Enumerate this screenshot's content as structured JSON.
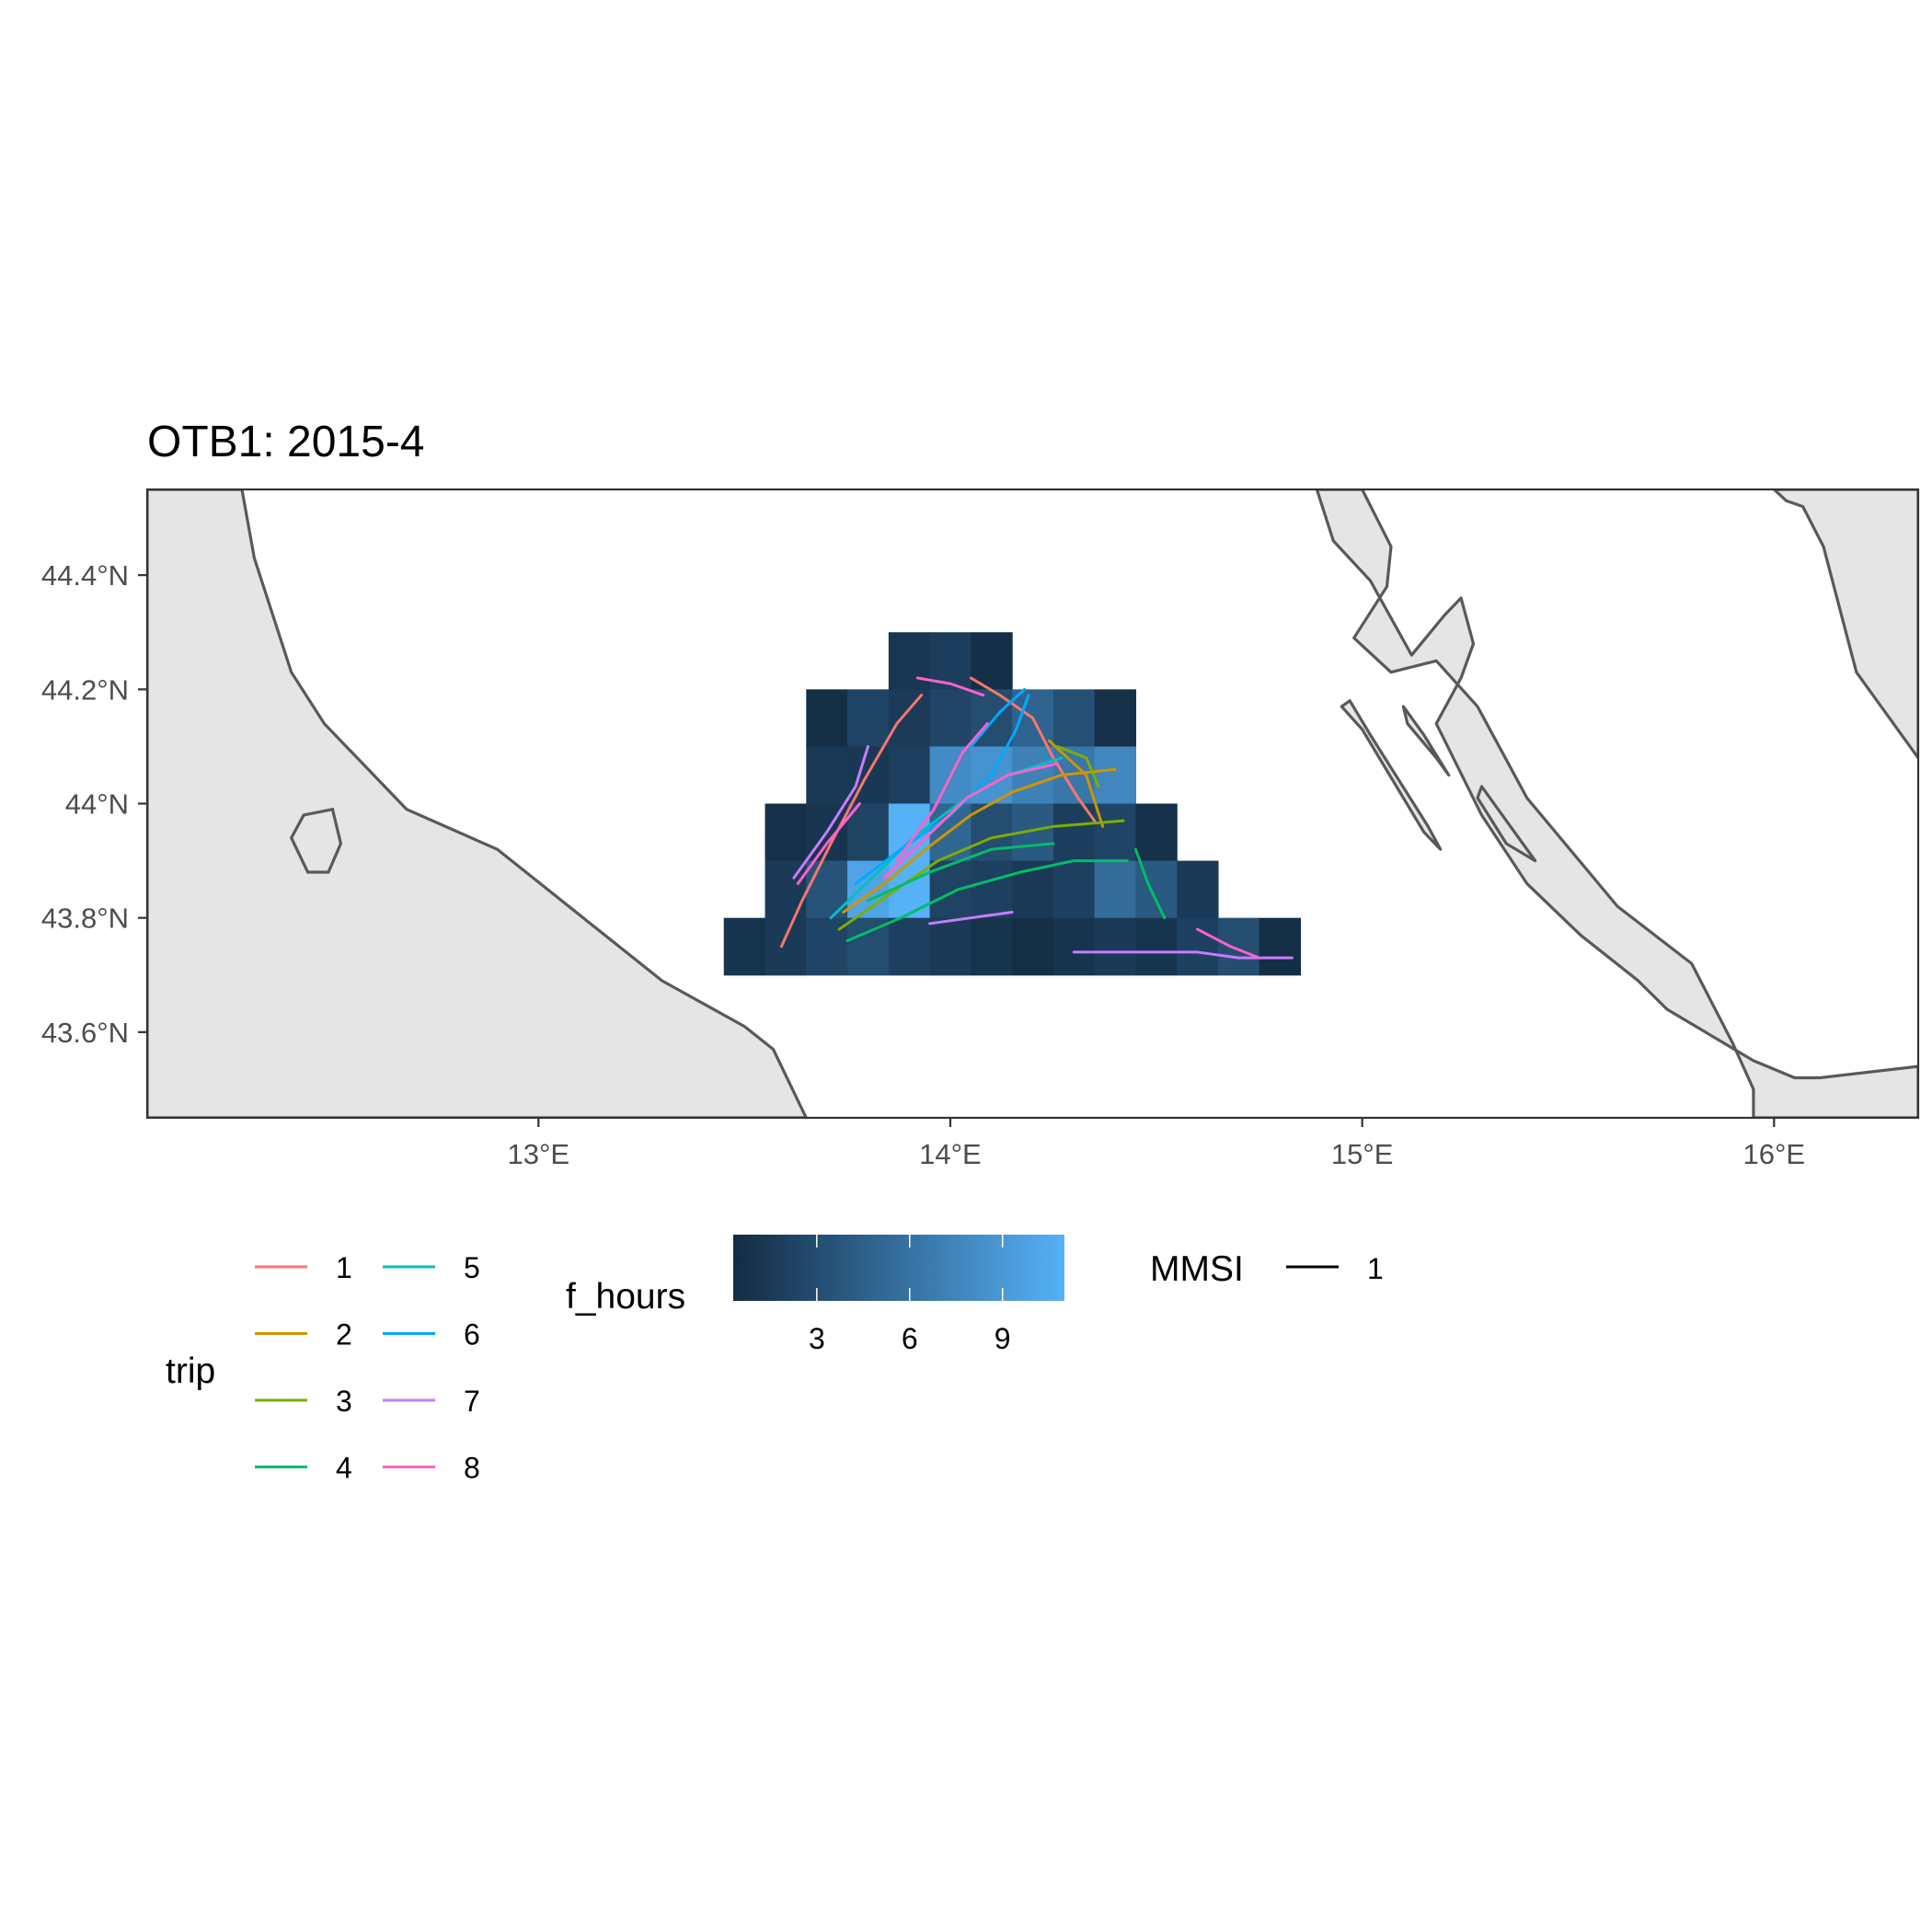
{
  "chart_data": {
    "type": "heatmap",
    "title": "OTB1: 2015-4",
    "xlim": [
      12.05,
      16.35
    ],
    "ylim": [
      43.45,
      44.55
    ],
    "x_ticks": [
      {
        "value": 13,
        "label": "13°E"
      },
      {
        "value": 14,
        "label": "14°E"
      },
      {
        "value": 15,
        "label": "15°E"
      },
      {
        "value": 16,
        "label": "16°E"
      }
    ],
    "y_ticks": [
      {
        "value": 43.6,
        "label": "43.6°N"
      },
      {
        "value": 43.8,
        "label": "43.8°N"
      },
      {
        "value": 44.0,
        "label": "44°N"
      },
      {
        "value": 44.2,
        "label": "44.2°N"
      },
      {
        "value": 44.4,
        "label": "44.4°N"
      }
    ],
    "grid": false,
    "cell_size": 0.1,
    "cells": [
      {
        "x": 13.9,
        "y": 44.25,
        "v": 1.2
      },
      {
        "x": 14.0,
        "y": 44.25,
        "v": 1.8
      },
      {
        "x": 14.1,
        "y": 44.25,
        "v": 0.6
      },
      {
        "x": 13.7,
        "y": 44.15,
        "v": 0.5
      },
      {
        "x": 13.8,
        "y": 44.15,
        "v": 2.2
      },
      {
        "x": 13.9,
        "y": 44.15,
        "v": 1.6
      },
      {
        "x": 14.0,
        "y": 44.15,
        "v": 2.4
      },
      {
        "x": 14.1,
        "y": 44.15,
        "v": 3.0
      },
      {
        "x": 14.2,
        "y": 44.15,
        "v": 4.8
      },
      {
        "x": 14.3,
        "y": 44.15,
        "v": 3.2
      },
      {
        "x": 14.4,
        "y": 44.15,
        "v": 0.7
      },
      {
        "x": 13.7,
        "y": 44.05,
        "v": 1.4
      },
      {
        "x": 13.8,
        "y": 44.05,
        "v": 1.3
      },
      {
        "x": 13.9,
        "y": 44.05,
        "v": 1.9
      },
      {
        "x": 14.0,
        "y": 44.05,
        "v": 8.0
      },
      {
        "x": 14.1,
        "y": 44.05,
        "v": 8.6
      },
      {
        "x": 14.2,
        "y": 44.05,
        "v": 7.2
      },
      {
        "x": 14.3,
        "y": 44.05,
        "v": 6.4
      },
      {
        "x": 14.4,
        "y": 44.05,
        "v": 7.6
      },
      {
        "x": 13.6,
        "y": 43.95,
        "v": 0.7
      },
      {
        "x": 13.7,
        "y": 43.95,
        "v": 1.1
      },
      {
        "x": 13.8,
        "y": 43.95,
        "v": 2.2
      },
      {
        "x": 13.9,
        "y": 43.95,
        "v": 11.0
      },
      {
        "x": 14.0,
        "y": 43.95,
        "v": 5.0
      },
      {
        "x": 14.1,
        "y": 43.95,
        "v": 3.0
      },
      {
        "x": 14.2,
        "y": 43.95,
        "v": 4.0
      },
      {
        "x": 14.3,
        "y": 43.95,
        "v": 1.8
      },
      {
        "x": 14.4,
        "y": 43.95,
        "v": 2.3
      },
      {
        "x": 14.5,
        "y": 43.95,
        "v": 0.7
      },
      {
        "x": 13.6,
        "y": 43.85,
        "v": 1.5
      },
      {
        "x": 13.7,
        "y": 43.85,
        "v": 3.5
      },
      {
        "x": 13.8,
        "y": 43.85,
        "v": 10.0
      },
      {
        "x": 13.9,
        "y": 43.85,
        "v": 11.0
      },
      {
        "x": 14.0,
        "y": 43.85,
        "v": 2.2
      },
      {
        "x": 14.1,
        "y": 43.85,
        "v": 2.0
      },
      {
        "x": 14.2,
        "y": 43.85,
        "v": 1.4
      },
      {
        "x": 14.3,
        "y": 43.85,
        "v": 2.0
      },
      {
        "x": 14.4,
        "y": 43.85,
        "v": 5.5
      },
      {
        "x": 14.5,
        "y": 43.85,
        "v": 4.0
      },
      {
        "x": 14.6,
        "y": 43.85,
        "v": 1.5
      },
      {
        "x": 13.5,
        "y": 43.75,
        "v": 1.0
      },
      {
        "x": 13.6,
        "y": 43.75,
        "v": 1.5
      },
      {
        "x": 13.7,
        "y": 43.75,
        "v": 2.3
      },
      {
        "x": 13.8,
        "y": 43.75,
        "v": 3.0
      },
      {
        "x": 13.9,
        "y": 43.75,
        "v": 2.0
      },
      {
        "x": 14.0,
        "y": 43.75,
        "v": 1.5
      },
      {
        "x": 14.1,
        "y": 43.75,
        "v": 1.0
      },
      {
        "x": 14.2,
        "y": 43.75,
        "v": 0.5
      },
      {
        "x": 14.3,
        "y": 43.75,
        "v": 1.0
      },
      {
        "x": 14.4,
        "y": 43.75,
        "v": 1.5
      },
      {
        "x": 14.5,
        "y": 43.75,
        "v": 1.0
      },
      {
        "x": 14.6,
        "y": 43.75,
        "v": 2.0
      },
      {
        "x": 14.7,
        "y": 43.75,
        "v": 3.0
      },
      {
        "x": 14.8,
        "y": 43.75,
        "v": 0.5
      }
    ],
    "fill_scale": {
      "title": "f_hours",
      "min": 0.3,
      "max": 11.0,
      "low": "#132b43",
      "high": "#56b1f7",
      "ticks": [
        {
          "value": 3,
          "label": "3"
        },
        {
          "value": 6,
          "label": "6"
        },
        {
          "value": 9,
          "label": "9"
        }
      ]
    },
    "tracks": [
      {
        "trip": "1",
        "color": "#f8766d",
        "pts": [
          [
            13.59,
            43.75
          ],
          [
            13.64,
            43.83
          ],
          [
            13.71,
            43.93
          ],
          [
            13.79,
            44.04
          ],
          [
            13.87,
            44.14
          ],
          [
            13.93,
            44.19
          ]
        ]
      },
      {
        "trip": "1",
        "color": "#f8766d",
        "pts": [
          [
            14.05,
            44.22
          ],
          [
            14.12,
            44.19
          ],
          [
            14.2,
            44.15
          ],
          [
            14.25,
            44.08
          ],
          [
            14.31,
            44.01
          ],
          [
            14.35,
            43.97
          ]
        ]
      },
      {
        "trip": "2",
        "color": "#cd9600",
        "pts": [
          [
            13.74,
            43.81
          ],
          [
            13.84,
            43.86
          ],
          [
            13.94,
            43.92
          ],
          [
            14.05,
            43.98
          ],
          [
            14.15,
            44.02
          ],
          [
            14.27,
            44.05
          ],
          [
            14.4,
            44.06
          ]
        ]
      },
      {
        "trip": "2",
        "color": "#cd9600",
        "pts": [
          [
            14.24,
            44.11
          ],
          [
            14.33,
            44.05
          ],
          [
            14.37,
            43.96
          ]
        ]
      },
      {
        "trip": "3",
        "color": "#7cae00",
        "pts": [
          [
            13.73,
            43.78
          ],
          [
            13.85,
            43.84
          ],
          [
            13.97,
            43.9
          ],
          [
            14.1,
            43.94
          ],
          [
            14.25,
            43.96
          ],
          [
            14.42,
            43.97
          ]
        ]
      },
      {
        "trip": "3",
        "color": "#7cae00",
        "pts": [
          [
            14.26,
            44.1
          ],
          [
            14.33,
            44.08
          ],
          [
            14.36,
            44.03
          ]
        ]
      },
      {
        "trip": "4",
        "color": "#00be67",
        "pts": [
          [
            13.75,
            43.76
          ],
          [
            13.88,
            43.8
          ],
          [
            14.02,
            43.85
          ],
          [
            14.17,
            43.88
          ],
          [
            14.3,
            43.9
          ],
          [
            14.43,
            43.9
          ]
        ]
      },
      {
        "trip": "4",
        "color": "#00be67",
        "pts": [
          [
            13.8,
            43.83
          ],
          [
            13.95,
            43.88
          ],
          [
            14.1,
            43.92
          ],
          [
            14.25,
            43.93
          ]
        ]
      },
      {
        "trip": "4",
        "color": "#00be67",
        "pts": [
          [
            14.45,
            43.92
          ],
          [
            14.48,
            43.86
          ],
          [
            14.52,
            43.8
          ]
        ]
      },
      {
        "trip": "5",
        "color": "#00bfc4",
        "pts": [
          [
            13.71,
            43.8
          ],
          [
            13.81,
            43.87
          ],
          [
            13.91,
            43.94
          ],
          [
            14.02,
            44.0
          ],
          [
            14.14,
            44.05
          ],
          [
            14.27,
            44.08
          ]
        ]
      },
      {
        "trip": "6",
        "color": "#00a9ff",
        "pts": [
          [
            13.77,
            43.86
          ],
          [
            13.88,
            43.92
          ],
          [
            14.0,
            43.98
          ],
          [
            14.1,
            44.05
          ],
          [
            14.16,
            44.13
          ],
          [
            14.19,
            44.19
          ]
        ]
      },
      {
        "trip": "6",
        "color": "#00a9ff",
        "pts": [
          [
            14.05,
            44.1
          ],
          [
            14.12,
            44.16
          ],
          [
            14.18,
            44.2
          ]
        ]
      },
      {
        "trip": "7",
        "color": "#c77cff",
        "pts": [
          [
            13.62,
            43.87
          ],
          [
            13.7,
            43.95
          ],
          [
            13.77,
            44.03
          ],
          [
            13.8,
            44.1
          ]
        ]
      },
      {
        "trip": "7",
        "color": "#c77cff",
        "pts": [
          [
            14.3,
            43.74
          ],
          [
            14.45,
            43.74
          ],
          [
            14.6,
            43.74
          ],
          [
            14.7,
            43.73
          ],
          [
            14.83,
            43.73
          ]
        ]
      },
      {
        "trip": "7",
        "color": "#c77cff",
        "pts": [
          [
            13.95,
            43.79
          ],
          [
            14.05,
            43.8
          ],
          [
            14.15,
            43.81
          ]
        ]
      },
      {
        "trip": "8",
        "color": "#ff61cc",
        "pts": [
          [
            13.63,
            43.86
          ],
          [
            13.7,
            43.93
          ],
          [
            13.78,
            44.0
          ]
        ]
      },
      {
        "trip": "8",
        "color": "#ff61cc",
        "pts": [
          [
            13.84,
            43.87
          ],
          [
            13.94,
            43.94
          ],
          [
            14.04,
            44.01
          ],
          [
            14.14,
            44.05
          ],
          [
            14.26,
            44.07
          ]
        ]
      },
      {
        "trip": "8",
        "color": "#ff61cc",
        "pts": [
          [
            13.92,
            44.22
          ],
          [
            14.0,
            44.21
          ],
          [
            14.08,
            44.19
          ]
        ]
      },
      {
        "trip": "8",
        "color": "#ff61cc",
        "pts": [
          [
            14.6,
            43.78
          ],
          [
            14.68,
            43.75
          ],
          [
            14.75,
            43.73
          ]
        ]
      },
      {
        "trip": "8",
        "color": "#ff61cc",
        "pts": [
          [
            13.87,
            43.9
          ],
          [
            13.96,
            43.99
          ],
          [
            14.03,
            44.09
          ],
          [
            14.09,
            44.14
          ]
        ]
      }
    ]
  },
  "map": {
    "land_fill": "#e5e5e5",
    "coast_color": "#595959",
    "land": [
      [
        [
          12.05,
          44.55
        ],
        [
          12.28,
          44.55
        ],
        [
          12.31,
          44.43
        ],
        [
          12.4,
          44.23
        ],
        [
          12.48,
          44.14
        ],
        [
          12.68,
          43.99
        ],
        [
          12.9,
          43.92
        ],
        [
          13.3,
          43.69
        ],
        [
          13.5,
          43.61
        ],
        [
          13.57,
          43.57
        ],
        [
          13.65,
          43.45
        ],
        [
          12.05,
          43.45
        ]
      ],
      [
        [
          16.35,
          44.55
        ],
        [
          16.35,
          44.08
        ],
        [
          16.2,
          44.23
        ],
        [
          16.12,
          44.45
        ],
        [
          16.07,
          44.52
        ],
        [
          16.03,
          44.53
        ],
        [
          16.0,
          44.55
        ]
      ],
      [
        [
          14.89,
          44.55
        ],
        [
          14.93,
          44.46
        ],
        [
          15.02,
          44.39
        ],
        [
          15.12,
          44.26
        ],
        [
          15.2,
          44.33
        ],
        [
          15.24,
          44.36
        ],
        [
          15.27,
          44.28
        ],
        [
          15.24,
          44.22
        ],
        [
          15.18,
          44.14
        ],
        [
          15.29,
          43.98
        ],
        [
          15.4,
          43.86
        ],
        [
          15.53,
          43.77
        ],
        [
          15.67,
          43.69
        ],
        [
          15.74,
          43.64
        ],
        [
          15.95,
          43.55
        ],
        [
          16.05,
          43.52
        ],
        [
          16.11,
          43.52
        ],
        [
          16.35,
          43.54
        ],
        [
          16.35,
          43.45
        ],
        [
          15.95,
          43.45
        ],
        [
          15.95,
          43.5
        ],
        [
          15.9,
          43.58
        ],
        [
          15.8,
          43.72
        ],
        [
          15.62,
          43.82
        ],
        [
          15.4,
          44.01
        ],
        [
          15.28,
          44.17
        ],
        [
          15.18,
          44.25
        ],
        [
          15.07,
          44.23
        ],
        [
          14.98,
          44.29
        ],
        [
          15.06,
          44.38
        ],
        [
          15.07,
          44.45
        ],
        [
          15.0,
          44.55
        ]
      ],
      [
        [
          14.97,
          44.18
        ],
        [
          15.02,
          44.12
        ],
        [
          15.16,
          43.96
        ],
        [
          15.19,
          43.92
        ],
        [
          15.15,
          43.95
        ],
        [
          15.0,
          44.13
        ],
        [
          14.95,
          44.17
        ]
      ],
      [
        [
          15.1,
          44.17
        ],
        [
          15.15,
          44.12
        ],
        [
          15.21,
          44.05
        ],
        [
          15.18,
          44.08
        ],
        [
          15.11,
          44.14
        ]
      ],
      [
        [
          15.28,
          44.01
        ],
        [
          15.35,
          43.93
        ],
        [
          15.42,
          43.9
        ],
        [
          15.36,
          43.96
        ],
        [
          15.29,
          44.03
        ]
      ]
    ],
    "island": [
      [
        12.43,
        43.98
      ],
      [
        12.5,
        43.99
      ],
      [
        12.52,
        43.93
      ],
      [
        12.49,
        43.88
      ],
      [
        12.44,
        43.88
      ],
      [
        12.4,
        43.94
      ]
    ]
  },
  "legends": {
    "trip": {
      "title": "trip",
      "entries": [
        {
          "label": "1",
          "color": "#f8766d"
        },
        {
          "label": "2",
          "color": "#cd9600"
        },
        {
          "label": "3",
          "color": "#7cae00"
        },
        {
          "label": "4",
          "color": "#00be67"
        },
        {
          "label": "5",
          "color": "#00bfc4"
        },
        {
          "label": "6",
          "color": "#00a9ff"
        },
        {
          "label": "7",
          "color": "#c77cff"
        },
        {
          "label": "8",
          "color": "#ff61cc"
        }
      ]
    },
    "mmsi": {
      "title": "MMSI",
      "label": "1",
      "color": "#000000"
    }
  }
}
